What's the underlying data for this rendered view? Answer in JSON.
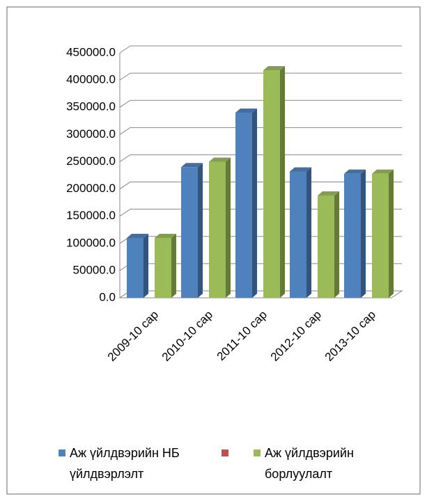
{
  "chart_data": {
    "type": "bar3d",
    "categories": [
      "2009-10 сар",
      "2010-10 сар",
      "2011-10 сар",
      "2012-10 сар",
      "2013-10 сар"
    ],
    "series": [
      {
        "name": "Аж үйлдвэрийн НБ үйлдвэрлэлт",
        "color": "#4f81bd",
        "values": [
          110000,
          240000,
          340000,
          232000,
          228000
        ]
      },
      {
        "name": null,
        "color": "#c0504d",
        "values": [
          null,
          null,
          null,
          null,
          null
        ]
      },
      {
        "name": "Аж үйлдвэрийн борлуулалт",
        "color": "#9bbb59",
        "values": [
          110000,
          250000,
          418000,
          188000,
          228000
        ]
      }
    ],
    "ylim": [
      0,
      450000
    ],
    "yticks": [
      {
        "value": 0,
        "label": "0.0"
      },
      {
        "value": 50000,
        "label": "50000.0"
      },
      {
        "value": 100000,
        "label": "100000.0"
      },
      {
        "value": 150000,
        "label": "150000.0"
      },
      {
        "value": 200000,
        "label": "200000.0"
      },
      {
        "value": 250000,
        "label": "250000.0"
      },
      {
        "value": 300000,
        "label": "300000.0"
      },
      {
        "value": 350000,
        "label": "350000.0"
      },
      {
        "value": 400000,
        "label": "400000.0"
      },
      {
        "value": 450000,
        "label": "450000.0"
      }
    ],
    "grid": true,
    "legend": "bottom"
  }
}
